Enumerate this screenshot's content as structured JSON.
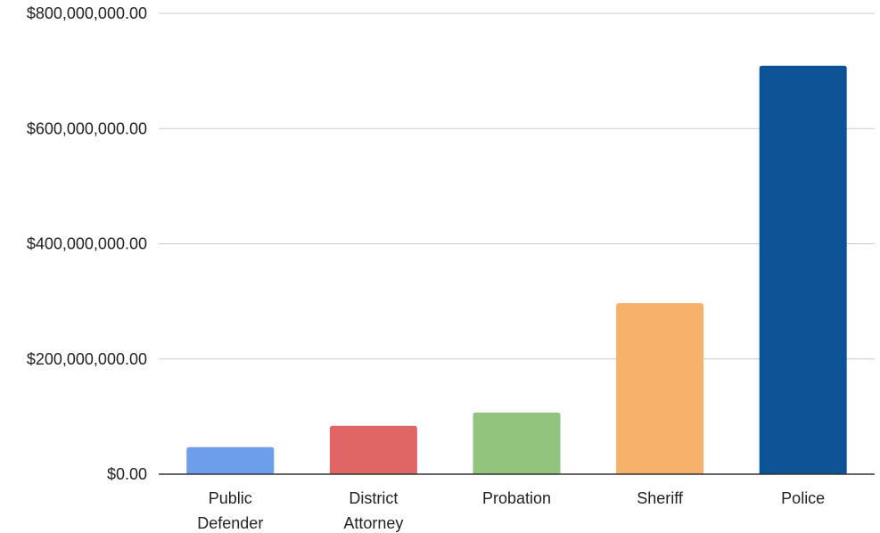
{
  "chart_data": {
    "type": "bar",
    "title": "",
    "xlabel": "",
    "ylabel": "",
    "categories": [
      [
        "Public",
        "Defender"
      ],
      [
        "District",
        "Attorney"
      ],
      [
        "Probation"
      ],
      [
        "Sheriff"
      ],
      [
        "Police"
      ]
    ],
    "values": [
      47000000,
      84000000,
      107000000,
      297000000,
      709000000
    ],
    "colors": [
      "#6d9eeb",
      "#e06666",
      "#93c47d",
      "#f6b26b",
      "#0b5394"
    ],
    "ylim": [
      0,
      800000000
    ],
    "yticks": [
      0,
      200000000,
      400000000,
      600000000,
      800000000
    ],
    "ytick_labels": [
      "$0.00",
      "$200,000,000.00",
      "$400,000,000.00",
      "$600,000,000.00",
      "$800,000,000.00"
    ],
    "grid": true,
    "legend": "none",
    "gridline_color": "#cccccc",
    "axis_color": "#333333"
  }
}
